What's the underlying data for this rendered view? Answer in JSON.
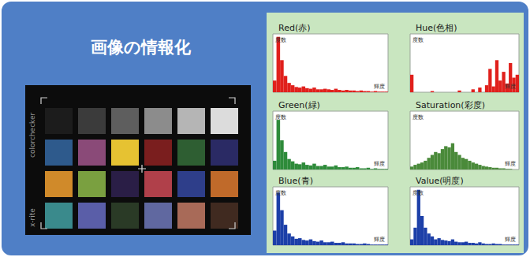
{
  "header": {
    "title": "画像の情報化"
  },
  "image": {
    "product": "colorchecker",
    "brand": "x-rite",
    "patches": [
      [
        "#1c1c1c",
        "#3b3b3b",
        "#5e5e5e",
        "#8c8c8c",
        "#b5b5b5",
        "#dcdcdc"
      ],
      [
        "#2e5a8c",
        "#8a4a78",
        "#e6c232",
        "#7a1e1e",
        "#2e5e32",
        "#2a2a64"
      ],
      [
        "#d08a2a",
        "#7aa040",
        "#2a1e46",
        "#b0404a",
        "#2e3e8a",
        "#c06a2a"
      ],
      [
        "#3a8a8c",
        "#5a5ea8",
        "#2a3a26",
        "#6068a0",
        "#a86a58",
        "#402a20"
      ]
    ]
  },
  "chart_data": [
    {
      "type": "histogram",
      "title": "Red(赤)",
      "xlabel": "輝度",
      "ylabel": "度数",
      "bins": [
        0,
        8,
        16,
        24,
        32,
        40,
        48,
        56,
        64,
        72,
        80,
        88,
        96,
        104,
        112,
        120,
        128,
        136,
        144,
        152,
        160,
        168,
        176,
        184,
        192,
        200,
        208,
        216,
        224,
        232,
        240,
        248,
        256
      ],
      "values": [
        20,
        95,
        55,
        28,
        16,
        12,
        9,
        8,
        10,
        7,
        6,
        8,
        5,
        5,
        6,
        5,
        4,
        6,
        4,
        3,
        4,
        3,
        3,
        2,
        3,
        2,
        2,
        1,
        2,
        1,
        1,
        1
      ],
      "color": "#e0201c",
      "xlim": [
        0,
        256
      ],
      "ylim": [
        0,
        100
      ],
      "grid": false,
      "tick_labels": false
    },
    {
      "type": "histogram",
      "title": "Hue(色相)",
      "xlabel": "輝度",
      "ylabel": "度数",
      "bins": [
        0,
        8,
        16,
        24,
        32,
        40,
        48,
        56,
        64,
        72,
        80,
        88,
        96,
        104,
        112,
        120,
        128,
        136,
        144,
        152,
        160,
        168,
        176,
        184,
        192,
        200,
        208,
        216,
        224,
        232,
        240,
        248,
        256
      ],
      "values": [
        30,
        0,
        0,
        0,
        0,
        0,
        2,
        0,
        0,
        0,
        0,
        0,
        0,
        0,
        3,
        0,
        0,
        0,
        5,
        0,
        8,
        0,
        12,
        40,
        10,
        55,
        20,
        35,
        15,
        50,
        25,
        30
      ],
      "color": "#e0201c",
      "xlim": [
        0,
        256
      ],
      "ylim": [
        0,
        100
      ],
      "grid": false,
      "tick_labels": false
    },
    {
      "type": "histogram",
      "title": "Green(緑)",
      "xlabel": "輝度",
      "ylabel": "度数",
      "bins": [
        0,
        8,
        16,
        24,
        32,
        40,
        48,
        56,
        64,
        72,
        80,
        88,
        96,
        104,
        112,
        120,
        128,
        136,
        144,
        152,
        160,
        168,
        176,
        184,
        192,
        200,
        208,
        216,
        224,
        232,
        240,
        248,
        256
      ],
      "values": [
        15,
        85,
        50,
        30,
        18,
        14,
        10,
        9,
        12,
        8,
        7,
        10,
        6,
        6,
        8,
        5,
        5,
        7,
        4,
        4,
        5,
        3,
        3,
        4,
        2,
        2,
        3,
        1,
        2,
        1,
        1,
        1
      ],
      "color": "#2e8b3a",
      "xlim": [
        0,
        256
      ],
      "ylim": [
        0,
        100
      ],
      "grid": false,
      "tick_labels": false
    },
    {
      "type": "histogram",
      "title": "Saturation(彩度)",
      "xlabel": "輝度",
      "ylabel": "度数",
      "bins": [
        0,
        8,
        16,
        24,
        32,
        40,
        48,
        56,
        64,
        72,
        80,
        88,
        96,
        104,
        112,
        120,
        128,
        136,
        144,
        152,
        160,
        168,
        176,
        184,
        192,
        200,
        208,
        216,
        224,
        232,
        240,
        248,
        256
      ],
      "values": [
        5,
        8,
        10,
        12,
        15,
        20,
        25,
        30,
        28,
        35,
        40,
        38,
        45,
        30,
        25,
        20,
        18,
        15,
        12,
        10,
        8,
        6,
        5,
        4,
        3,
        3,
        2,
        2,
        1,
        1,
        0,
        0
      ],
      "color": "#4a8a3a",
      "xlim": [
        0,
        256
      ],
      "ylim": [
        0,
        100
      ],
      "grid": false,
      "tick_labels": false
    },
    {
      "type": "histogram",
      "title": "Blue(青)",
      "xlabel": "輝度",
      "ylabel": "度数",
      "bins": [
        0,
        8,
        16,
        24,
        32,
        40,
        48,
        56,
        64,
        72,
        80,
        88,
        96,
        104,
        112,
        120,
        128,
        136,
        144,
        152,
        160,
        168,
        176,
        184,
        192,
        200,
        208,
        216,
        224,
        232,
        240,
        248,
        256
      ],
      "values": [
        25,
        90,
        60,
        35,
        20,
        15,
        11,
        12,
        9,
        8,
        10,
        7,
        6,
        8,
        5,
        5,
        6,
        4,
        4,
        5,
        3,
        3,
        3,
        2,
        2,
        3,
        2,
        1,
        1,
        1,
        1,
        1
      ],
      "color": "#1c3fa8",
      "xlim": [
        0,
        256
      ],
      "ylim": [
        0,
        100
      ],
      "grid": false,
      "tick_labels": false
    },
    {
      "type": "histogram",
      "title": "Value(明度)",
      "xlabel": "輝度",
      "ylabel": "度数",
      "bins": [
        0,
        8,
        16,
        24,
        32,
        40,
        48,
        56,
        64,
        72,
        80,
        88,
        96,
        104,
        112,
        120,
        128,
        136,
        144,
        152,
        160,
        168,
        176,
        184,
        192,
        200,
        208,
        216,
        224,
        232,
        240,
        248,
        256
      ],
      "values": [
        10,
        30,
        95,
        50,
        30,
        20,
        15,
        10,
        12,
        9,
        8,
        7,
        10,
        6,
        5,
        5,
        6,
        4,
        4,
        3,
        5,
        3,
        2,
        2,
        3,
        2,
        2,
        1,
        1,
        1,
        1,
        1
      ],
      "color": "#1c3fa8",
      "xlim": [
        0,
        256
      ],
      "ylim": [
        0,
        100
      ],
      "grid": false,
      "tick_labels": false
    }
  ]
}
